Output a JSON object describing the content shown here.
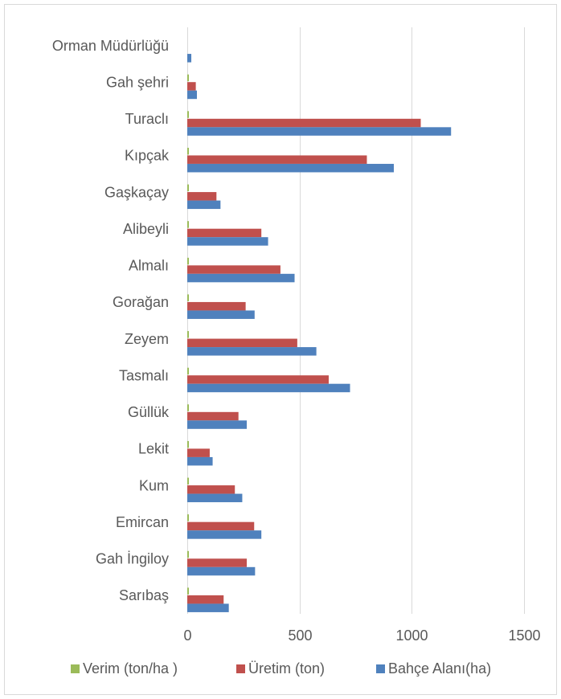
{
  "chart_data": {
    "type": "bar",
    "orientation": "horizontal",
    "categories": [
      "Orman Müdürlüğü",
      "Gah şehri",
      "Turaclı",
      "Kıpçak",
      "Gaşkaçay",
      "Alibeyli",
      "Almalı",
      "Gorağan",
      "Zeyem",
      "Tasmalı",
      "Güllük",
      "Lekit",
      "Kum",
      "Emircan",
      "Gah İngiloy",
      "Sarıbaş"
    ],
    "series": [
      {
        "name": "Verim (ton/ha )",
        "color": "#9BBB59",
        "values": [
          0,
          7,
          7,
          7,
          7,
          7,
          7,
          7,
          7,
          7,
          7,
          7,
          7,
          7,
          7,
          7
        ]
      },
      {
        "name": "Üretim (ton)",
        "color": "#C0504D",
        "values": [
          0,
          38,
          1040,
          800,
          130,
          330,
          415,
          260,
          490,
          630,
          228,
          100,
          212,
          298,
          265,
          162
        ]
      },
      {
        "name": "Bahçe Alanı(ha)",
        "color": "#4F81BD",
        "values": [
          18,
          43,
          1175,
          920,
          148,
          360,
          478,
          300,
          575,
          725,
          265,
          113,
          245,
          330,
          302,
          185
        ]
      }
    ],
    "xlim": [
      0,
      1500
    ],
    "xticks": [
      "0",
      "500",
      "1000",
      "1500"
    ],
    "grid": true,
    "legend_position": "bottom"
  }
}
